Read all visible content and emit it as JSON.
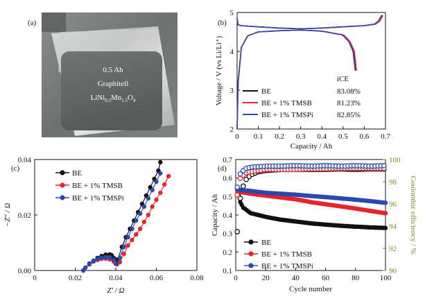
{
  "panels": {
    "a": {
      "label": "(a)",
      "photo_lines": [
        "0.5 Ah",
        "Graphitell"
      ],
      "formula": {
        "base": "LiNi",
        "s1": "0.5",
        "mid": "Mn",
        "s2": "1.5",
        "end": "O",
        "s3": "4"
      }
    }
  },
  "charts": [
    {
      "id": "b",
      "label": "(b)",
      "type": "line",
      "xlabel": "Capacity / Ah",
      "ylabel": "Voltage / V (vs Li/Li⁺)",
      "xlim": [
        0,
        0.7
      ],
      "ylim": [
        2,
        5
      ],
      "xticks": [
        0,
        0.1,
        0.2,
        0.3,
        0.4,
        0.5,
        0.6,
        0.7
      ],
      "yticks": [
        2,
        3,
        4,
        5
      ],
      "legend_header": "iCE",
      "series": [
        {
          "name": "BE",
          "color": "#111111",
          "value_label": "83.08%"
        },
        {
          "name": "BE + 1% TMSB",
          "color": "#e8242a",
          "value_label": "81.23%"
        },
        {
          "name": "BE + 1% TMSPi",
          "color": "#2b48b0",
          "value_label": "82.85%"
        }
      ],
      "curves": {
        "charge": [
          [
            0.0,
            4.85
          ],
          [
            0.005,
            4.68
          ],
          [
            0.02,
            4.66
          ],
          [
            0.1,
            4.63
          ],
          [
            0.2,
            4.6
          ],
          [
            0.3,
            4.58
          ],
          [
            0.4,
            4.6
          ],
          [
            0.5,
            4.63
          ],
          [
            0.6,
            4.66
          ],
          [
            0.65,
            4.7
          ],
          [
            0.67,
            4.78
          ],
          [
            0.68,
            4.88
          ],
          [
            0.685,
            4.93
          ]
        ],
        "discharge": [
          [
            0.0,
            2.0
          ],
          [
            0.005,
            3.2
          ],
          [
            0.02,
            4.1
          ],
          [
            0.05,
            4.4
          ],
          [
            0.1,
            4.5
          ],
          [
            0.2,
            4.53
          ],
          [
            0.3,
            4.55
          ],
          [
            0.4,
            4.52
          ],
          [
            0.5,
            4.42
          ],
          [
            0.53,
            4.25
          ],
          [
            0.55,
            4.0
          ],
          [
            0.56,
            3.5
          ]
        ]
      }
    },
    {
      "id": "c",
      "label": "(c)",
      "type": "scatter",
      "xlabel": "Z′ / Ω",
      "ylabel": "−Z″ / Ω",
      "xlim": [
        0,
        0.08
      ],
      "ylim": [
        0,
        0.04
      ],
      "xticks": [
        0,
        0.02,
        0.04,
        0.06,
        0.08
      ],
      "yticks": [
        0,
        0.02,
        0.04
      ],
      "series": [
        {
          "name": "BE",
          "color": "#111111",
          "points": [
            [
              0.024,
              0
            ],
            [
              0.025,
              0.001
            ],
            [
              0.027,
              0.0025
            ],
            [
              0.029,
              0.0035
            ],
            [
              0.031,
              0.0045
            ],
            [
              0.033,
              0.0052
            ],
            [
              0.035,
              0.0057
            ],
            [
              0.037,
              0.0058
            ],
            [
              0.038,
              0.0055
            ],
            [
              0.039,
              0.0045
            ],
            [
              0.0395,
              0.003
            ],
            [
              0.04,
              0.0025
            ],
            [
              0.041,
              0.004
            ],
            [
              0.043,
              0.0085
            ],
            [
              0.045,
              0.012
            ],
            [
              0.047,
              0.015
            ],
            [
              0.049,
              0.018
            ],
            [
              0.051,
              0.021
            ],
            [
              0.053,
              0.024
            ],
            [
              0.055,
              0.027
            ],
            [
              0.057,
              0.03
            ],
            [
              0.059,
              0.033
            ],
            [
              0.061,
              0.036
            ],
            [
              0.062,
              0.039
            ]
          ]
        },
        {
          "name": "BE + 1% TMSB",
          "color": "#e8242a",
          "points": [
            [
              0.024,
              0
            ],
            [
              0.025,
              0.001
            ],
            [
              0.027,
              0.0022
            ],
            [
              0.029,
              0.0032
            ],
            [
              0.031,
              0.0038
            ],
            [
              0.033,
              0.0042
            ],
            [
              0.035,
              0.0043
            ],
            [
              0.037,
              0.004
            ],
            [
              0.039,
              0.0032
            ],
            [
              0.0405,
              0.0022
            ],
            [
              0.042,
              0.003
            ],
            [
              0.044,
              0.006
            ],
            [
              0.046,
              0.009
            ],
            [
              0.048,
              0.011
            ],
            [
              0.05,
              0.013
            ],
            [
              0.052,
              0.015
            ],
            [
              0.054,
              0.0175
            ],
            [
              0.056,
              0.02
            ],
            [
              0.058,
              0.023
            ],
            [
              0.06,
              0.0255
            ],
            [
              0.062,
              0.028
            ],
            [
              0.064,
              0.031
            ],
            [
              0.066,
              0.034
            ]
          ]
        },
        {
          "name": "BE + 1% TMSPi",
          "color": "#2b48b0",
          "points": [
            [
              0.024,
              0
            ],
            [
              0.025,
              0.001
            ],
            [
              0.027,
              0.0024
            ],
            [
              0.029,
              0.0034
            ],
            [
              0.031,
              0.0041
            ],
            [
              0.033,
              0.0046
            ],
            [
              0.035,
              0.0048
            ],
            [
              0.037,
              0.0047
            ],
            [
              0.039,
              0.0038
            ],
            [
              0.0405,
              0.0025
            ],
            [
              0.042,
              0.0045
            ],
            [
              0.044,
              0.0085
            ],
            [
              0.046,
              0.012
            ],
            [
              0.048,
              0.015
            ],
            [
              0.05,
              0.018
            ],
            [
              0.052,
              0.0205
            ],
            [
              0.054,
              0.023
            ],
            [
              0.056,
              0.026
            ],
            [
              0.058,
              0.029
            ],
            [
              0.06,
              0.032
            ],
            [
              0.062,
              0.035
            ]
          ]
        }
      ]
    },
    {
      "id": "d",
      "label": "(d)",
      "type": "scatter",
      "xlabel": "Cycle number",
      "ylabel": "Capacity / Ah",
      "y2label": "Coulombic efficiency / %",
      "y2color": "#7a8c1e",
      "xlim": [
        0,
        100
      ],
      "ylim": [
        0.1,
        0.7
      ],
      "y2lim": [
        90,
        100
      ],
      "xticks": [
        0,
        20,
        40,
        60,
        80,
        100
      ],
      "yticks": [
        0.1,
        0.2,
        0.3,
        0.4,
        0.5,
        0.6,
        0.7
      ],
      "y2ticks": [
        90,
        92,
        94,
        96,
        98,
        100
      ],
      "series": [
        {
          "name": "BE",
          "color": "#111111",
          "capacity": [
            [
              1,
              0.55
            ],
            [
              3,
              0.47
            ],
            [
              5,
              0.44
            ],
            [
              10,
              0.41
            ],
            [
              15,
              0.4
            ],
            [
              20,
              0.39
            ],
            [
              30,
              0.375
            ],
            [
              40,
              0.365
            ],
            [
              50,
              0.355
            ],
            [
              60,
              0.348
            ],
            [
              70,
              0.342
            ],
            [
              80,
              0.337
            ],
            [
              90,
              0.333
            ],
            [
              100,
              0.33
            ]
          ],
          "ce": [
            [
              1,
              93.5
            ],
            [
              2,
              95.5
            ],
            [
              3,
              96.5
            ],
            [
              4,
              97.2
            ],
            [
              5,
              97.6
            ],
            [
              7,
              98.2
            ],
            [
              10,
              98.6
            ],
            [
              15,
              98.9
            ],
            [
              20,
              99.0
            ],
            [
              30,
              99.1
            ],
            [
              40,
              99.1
            ],
            [
              50,
              99.1
            ],
            [
              60,
              99.1
            ],
            [
              70,
              99.15
            ],
            [
              80,
              99.1
            ],
            [
              90,
              99.15
            ],
            [
              100,
              99.15
            ]
          ]
        },
        {
          "name": "BE + 1% TMSB",
          "color": "#e8242a",
          "capacity": [
            [
              1,
              0.53
            ],
            [
              3,
              0.525
            ],
            [
              10,
              0.515
            ],
            [
              20,
              0.505
            ],
            [
              30,
              0.495
            ],
            [
              40,
              0.485
            ],
            [
              50,
              0.47
            ],
            [
              60,
              0.458
            ],
            [
              70,
              0.447
            ],
            [
              80,
              0.435
            ],
            [
              90,
              0.422
            ],
            [
              100,
              0.41
            ]
          ],
          "ce": [
            [
              1,
              96.8
            ],
            [
              2,
              97.8
            ],
            [
              3,
              98.3
            ],
            [
              5,
              98.6
            ],
            [
              7,
              98.8
            ],
            [
              10,
              98.9
            ],
            [
              15,
              99.0
            ],
            [
              20,
              99.1
            ],
            [
              30,
              99.1
            ],
            [
              40,
              99.1
            ],
            [
              50,
              99.15
            ],
            [
              60,
              99.15
            ],
            [
              70,
              99.2
            ],
            [
              80,
              99.2
            ],
            [
              90,
              99.2
            ],
            [
              100,
              99.2
            ]
          ]
        },
        {
          "name": "BE + 1% TMSPi",
          "color": "#2b48b0",
          "capacity": [
            [
              1,
              0.54
            ],
            [
              3,
              0.535
            ],
            [
              10,
              0.53
            ],
            [
              20,
              0.52
            ],
            [
              30,
              0.515
            ],
            [
              40,
              0.51
            ],
            [
              50,
              0.503
            ],
            [
              60,
              0.497
            ],
            [
              70,
              0.49
            ],
            [
              80,
              0.483
            ],
            [
              90,
              0.475
            ],
            [
              100,
              0.466
            ]
          ],
          "ce": [
            [
              1,
              97.5
            ],
            [
              2,
              98.3
            ],
            [
              3,
              98.7
            ],
            [
              5,
              99.0
            ],
            [
              7,
              99.2
            ],
            [
              10,
              99.3
            ],
            [
              15,
              99.35
            ],
            [
              20,
              99.4
            ],
            [
              30,
              99.4
            ],
            [
              40,
              99.45
            ],
            [
              50,
              99.4
            ],
            [
              60,
              99.45
            ],
            [
              70,
              99.4
            ],
            [
              80,
              99.45
            ],
            [
              90,
              99.4
            ],
            [
              100,
              99.45
            ]
          ]
        }
      ]
    }
  ]
}
